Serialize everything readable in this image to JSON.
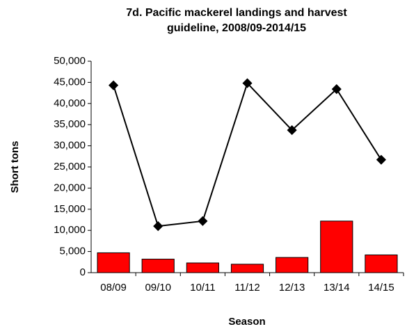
{
  "chart_data": {
    "type": "bar",
    "title": "7d. Pacific mackerel landings and harvest guideline, 2008/09-2014/15",
    "x_label": "Season",
    "y_label": "Short tons",
    "categories": [
      "08/09",
      "09/10",
      "10/11",
      "11/12",
      "12/13",
      "13/14",
      "14/15"
    ],
    "series": [
      {
        "type": "bar",
        "color": "#ff0000",
        "values": [
          4700,
          3200,
          2300,
          2000,
          3600,
          12200,
          4200
        ]
      },
      {
        "type": "line",
        "color": "#000000",
        "values": [
          44300,
          11000,
          12200,
          44800,
          33700,
          43400,
          26700
        ]
      }
    ],
    "ylim": [
      0,
      50000
    ],
    "yticks": [
      0,
      {
        "value": 5000,
        "label": "5,000"
      },
      {
        "value": 10000,
        "label": "10,000"
      },
      {
        "value": 15000,
        "label": "15,000"
      },
      {
        "value": 20000,
        "label": "20,000"
      },
      {
        "value": 25000,
        "label": "25,000"
      },
      {
        "value": 30000,
        "label": "30,000"
      },
      {
        "value": 35000,
        "label": "35,000"
      },
      {
        "value": 40000,
        "label": "40,000"
      },
      {
        "value": 45000,
        "label": "45,000"
      },
      {
        "value": 50000,
        "label": "50,000"
      }
    ],
    "grid": false
  }
}
